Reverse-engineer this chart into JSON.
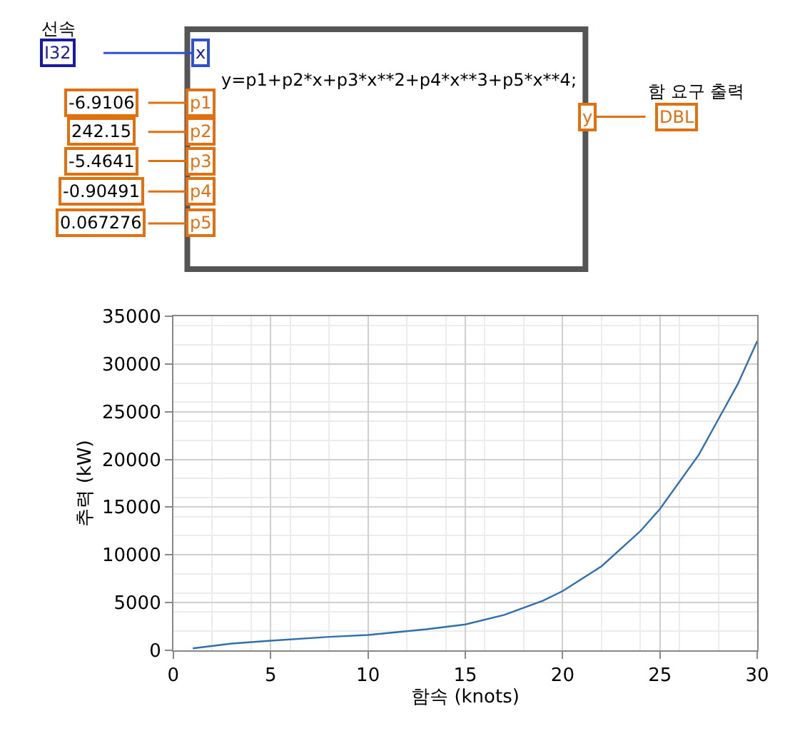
{
  "chart_data": [
    {
      "type": "other",
      "annotations": [
        "선속",
        "I32",
        "x",
        "y=p1+p2*x+p3*x**2+p4*x**3+p5*x**4;",
        "-6.9106",
        "p1",
        "242.15",
        "p2",
        "-5.4641",
        "p3",
        "-0.90491",
        "p4",
        "0.067276",
        "p5",
        "y",
        "함 요구 출력",
        "DBL"
      ]
    },
    {
      "type": "line",
      "xlabel": "함속 (knots)",
      "ylabel": "추력 (kW)",
      "x": [
        1,
        3,
        5,
        8,
        10,
        13,
        15,
        17,
        19,
        20,
        22,
        24,
        25,
        27,
        29,
        30
      ],
      "series": [
        {
          "color": "#2f6fb0",
          "values": [
            200,
            700,
            1000,
            1400,
            1600,
            2200,
            2700,
            3700,
            5200,
            6200,
            8800,
            12500,
            14800,
            20500,
            27900,
            32400
          ]
        }
      ],
      "xlim": [
        0,
        30
      ],
      "xticks": [
        0,
        5,
        10,
        15,
        20,
        25,
        30
      ],
      "ylim": [
        0,
        35000
      ],
      "yticks": [
        0,
        5000,
        10000,
        15000,
        20000,
        25000,
        30000,
        35000
      ],
      "grid": true,
      "marker": "none",
      "line_style": "solid"
    }
  ]
}
